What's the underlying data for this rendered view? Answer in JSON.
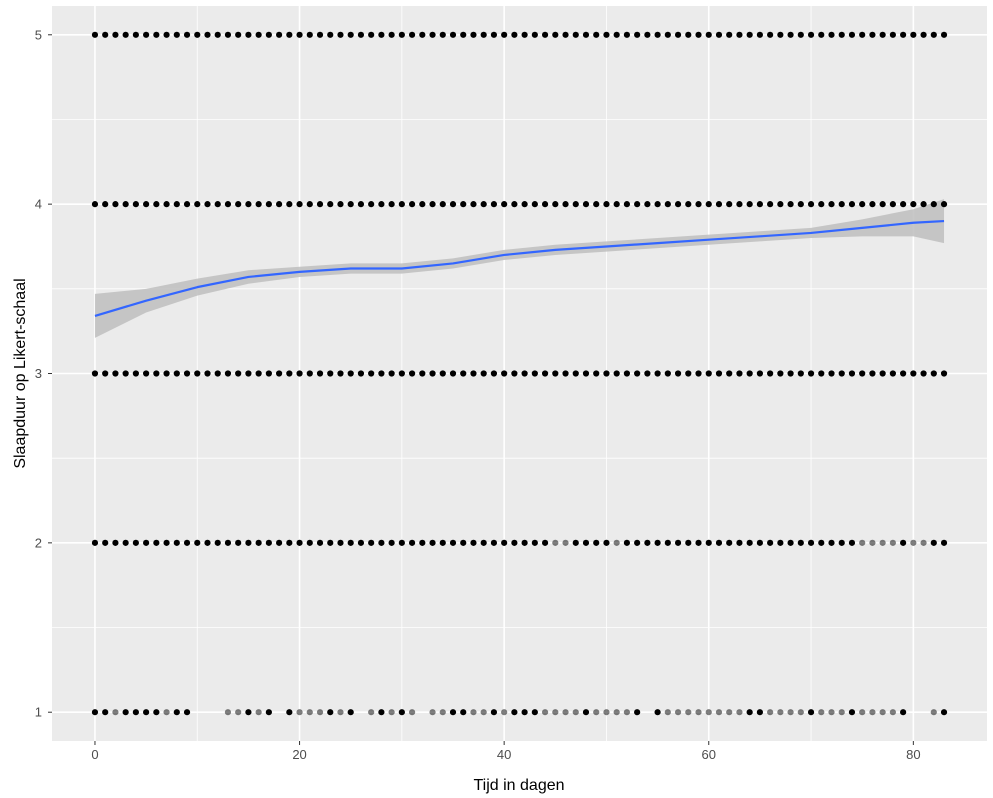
{
  "chart_data": {
    "type": "scatter",
    "xlabel": "Tijd in dagen",
    "ylabel": "Slaapduur op Likert-schaal",
    "xlim": [
      -4.2,
      87.2
    ],
    "ylim": [
      0.83,
      5.17
    ],
    "x_ticks": [
      0,
      20,
      40,
      60,
      80
    ],
    "y_ticks": [
      1,
      2,
      3,
      4,
      5
    ],
    "x_tick_labels": [
      "0",
      "20",
      "40",
      "60",
      "80"
    ],
    "y_tick_labels": [
      "1",
      "2",
      "3",
      "4",
      "5"
    ],
    "grid": true,
    "panel_background": "#ebebeb",
    "grid_color": "#ffffff",
    "legend": "none",
    "series": [
      {
        "kind": "points",
        "color": "#000000",
        "rows": [
          {
            "y": 5,
            "x_from": 0,
            "x_to": 83,
            "light_x": []
          },
          {
            "y": 4,
            "x_from": 0,
            "x_to": 83,
            "light_x": []
          },
          {
            "y": 3,
            "x_from": 0,
            "x_to": 83,
            "light_x": []
          },
          {
            "y": 2,
            "x_from": 0,
            "x_to": 83,
            "light_x": [
              45,
              46,
              51,
              75,
              76,
              77,
              78,
              80,
              81
            ]
          },
          {
            "y": 1,
            "points": [
              0,
              1,
              2,
              3,
              4,
              5,
              6,
              7,
              8,
              9,
              13,
              14,
              15,
              16,
              17,
              19,
              20,
              21,
              22,
              23,
              24,
              25,
              27,
              28,
              29,
              30,
              31,
              33,
              34,
              35,
              36,
              37,
              38,
              39,
              40,
              41,
              42,
              43,
              44,
              45,
              46,
              47,
              48,
              49,
              50,
              51,
              52,
              53,
              55,
              56,
              57,
              58,
              59,
              60,
              61,
              62,
              63,
              64,
              65,
              66,
              67,
              68,
              69,
              70,
              71,
              72,
              73,
              74,
              75,
              76,
              77,
              78,
              79,
              82,
              83
            ],
            "light_x": [
              2,
              7,
              13,
              14,
              16,
              20,
              21,
              22,
              24,
              27,
              29,
              31,
              33,
              34,
              37,
              38,
              40,
              44,
              45,
              46,
              47,
              49,
              50,
              51,
              52,
              56,
              57,
              58,
              59,
              60,
              61,
              62,
              63,
              66,
              67,
              68,
              69,
              71,
              72,
              73,
              75,
              76,
              77,
              78,
              82
            ]
          }
        ]
      },
      {
        "kind": "smooth",
        "color": "#3366ff",
        "band_color": "#bebebe",
        "x": [
          0,
          5,
          10,
          15,
          20,
          25,
          30,
          35,
          40,
          45,
          50,
          55,
          60,
          65,
          70,
          75,
          80,
          83
        ],
        "y": [
          3.34,
          3.43,
          3.51,
          3.57,
          3.6,
          3.62,
          3.62,
          3.65,
          3.7,
          3.73,
          3.75,
          3.77,
          3.79,
          3.81,
          3.83,
          3.86,
          3.89,
          3.9
        ],
        "lower": [
          3.21,
          3.36,
          3.46,
          3.53,
          3.57,
          3.59,
          3.59,
          3.62,
          3.67,
          3.7,
          3.72,
          3.74,
          3.76,
          3.78,
          3.8,
          3.81,
          3.81,
          3.77
        ],
        "upper": [
          3.47,
          3.5,
          3.56,
          3.61,
          3.63,
          3.65,
          3.65,
          3.68,
          3.73,
          3.76,
          3.78,
          3.8,
          3.82,
          3.84,
          3.86,
          3.91,
          3.97,
          4.03
        ]
      }
    ]
  }
}
